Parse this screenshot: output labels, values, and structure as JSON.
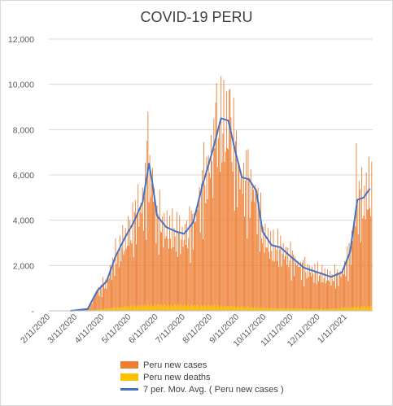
{
  "chart_data": {
    "type": "bar",
    "title": "COVID-19 PERU",
    "xlabel": "",
    "ylabel": "",
    "ylim": [
      0,
      12000
    ],
    "y_ticks": [
      "-",
      "2,000",
      "4,000",
      "6,000",
      "8,000",
      "10,000",
      "12,000"
    ],
    "x_ticks": [
      "2/11/2020",
      "3/11/2020",
      "4/11/2020",
      "5/11/2020",
      "6/11/2020",
      "7/11/2020",
      "8/11/2020",
      "9/11/2020",
      "10/11/2020",
      "11/11/2020",
      "12/11/2020",
      "1/11/2021"
    ],
    "grid": true,
    "legend": "bottom",
    "series_meta": [
      {
        "name": "Peru new cases",
        "kind": "bar",
        "color": "#ED7D31"
      },
      {
        "name": "Peru new deaths",
        "kind": "bar",
        "color": "#FFC000"
      },
      {
        "name": "7 per. Mov. Avg. ( Peru new cases )",
        "kind": "line",
        "color": "#4472C4"
      }
    ],
    "moving_average_knots": [
      {
        "x": "2020-03-06",
        "y": 0
      },
      {
        "x": "2020-03-25",
        "y": 80
      },
      {
        "x": "2020-04-05",
        "y": 900
      },
      {
        "x": "2020-04-15",
        "y": 1300
      },
      {
        "x": "2020-04-25",
        "y": 2400
      },
      {
        "x": "2020-05-05",
        "y": 3200
      },
      {
        "x": "2020-05-15",
        "y": 3900
      },
      {
        "x": "2020-05-25",
        "y": 4800
      },
      {
        "x": "2020-06-01",
        "y": 6500
      },
      {
        "x": "2020-06-05",
        "y": 5600
      },
      {
        "x": "2020-06-10",
        "y": 4200
      },
      {
        "x": "2020-06-20",
        "y": 3700
      },
      {
        "x": "2020-07-01",
        "y": 3500
      },
      {
        "x": "2020-07-10",
        "y": 3400
      },
      {
        "x": "2020-07-20",
        "y": 3900
      },
      {
        "x": "2020-07-30",
        "y": 5500
      },
      {
        "x": "2020-08-10",
        "y": 7000
      },
      {
        "x": "2020-08-20",
        "y": 8500
      },
      {
        "x": "2020-08-28",
        "y": 8400
      },
      {
        "x": "2020-09-05",
        "y": 7000
      },
      {
        "x": "2020-09-12",
        "y": 5900
      },
      {
        "x": "2020-09-20",
        "y": 5800
      },
      {
        "x": "2020-09-28",
        "y": 5300
      },
      {
        "x": "2020-10-05",
        "y": 3500
      },
      {
        "x": "2020-10-15",
        "y": 2900
      },
      {
        "x": "2020-10-25",
        "y": 2800
      },
      {
        "x": "2020-11-05",
        "y": 2400
      },
      {
        "x": "2020-11-20",
        "y": 1900
      },
      {
        "x": "2020-12-05",
        "y": 1700
      },
      {
        "x": "2020-12-20",
        "y": 1500
      },
      {
        "x": "2021-01-01",
        "y": 1700
      },
      {
        "x": "2021-01-10",
        "y": 2600
      },
      {
        "x": "2021-01-18",
        "y": 4900
      },
      {
        "x": "2021-01-25",
        "y": 5000
      },
      {
        "x": "2021-02-01",
        "y": 5400
      }
    ],
    "daily_case_peaks": [
      {
        "x": "2020-04-25",
        "y": 3200
      },
      {
        "x": "2020-05-20",
        "y": 5600
      },
      {
        "x": "2020-05-31",
        "y": 8800
      },
      {
        "x": "2020-06-05",
        "y": 6300
      },
      {
        "x": "2020-08-14",
        "y": 9200
      },
      {
        "x": "2020-08-23",
        "y": 10200
      },
      {
        "x": "2020-08-30",
        "y": 9800
      },
      {
        "x": "2021-01-17",
        "y": 7400
      },
      {
        "x": "2021-01-31",
        "y": 6800
      }
    ],
    "deaths_level": [
      {
        "x": "2020-03-20",
        "y": 0
      },
      {
        "x": "2020-04-10",
        "y": 80
      },
      {
        "x": "2020-05-10",
        "y": 200
      },
      {
        "x": "2020-06-10",
        "y": 260
      },
      {
        "x": "2020-08-15",
        "y": 220
      },
      {
        "x": "2020-10-15",
        "y": 120
      },
      {
        "x": "2020-12-15",
        "y": 80
      },
      {
        "x": "2021-02-01",
        "y": 200
      }
    ],
    "x_start": "2020-02-11",
    "x_end": "2021-02-04"
  }
}
